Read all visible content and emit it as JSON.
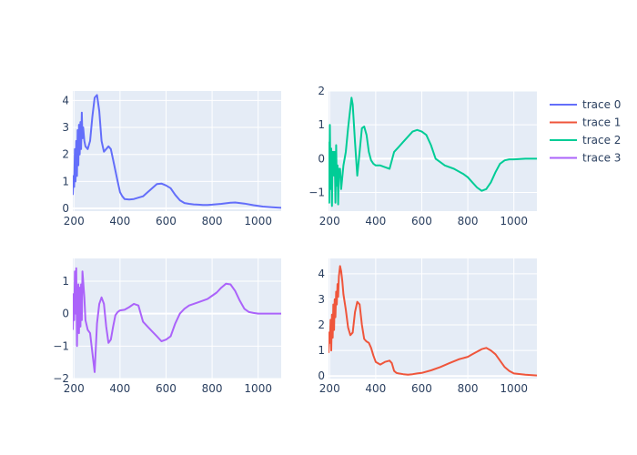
{
  "chart_data": [
    {
      "type": "line",
      "title": "",
      "xlabel": "",
      "ylabel": "",
      "xlim": [
        195,
        1100
      ],
      "ylim": [
        -0.1,
        4.35
      ],
      "x_ticks": [
        200,
        400,
        600,
        800,
        1000
      ],
      "y_ticks": [
        0,
        1,
        2,
        3,
        4
      ],
      "grid": true,
      "series": [
        {
          "name": "trace 0",
          "color": "#636efa",
          "x": [
            195,
            198,
            201,
            204,
            207,
            210,
            213,
            216,
            219,
            222,
            225,
            228,
            231,
            234,
            237,
            240,
            245,
            250,
            260,
            270,
            280,
            290,
            300,
            310,
            320,
            330,
            340,
            350,
            360,
            370,
            380,
            390,
            400,
            410,
            420,
            440,
            460,
            480,
            500,
            520,
            540,
            560,
            580,
            600,
            620,
            640,
            660,
            680,
            700,
            720,
            740,
            760,
            780,
            800,
            840,
            880,
            900,
            940,
            980,
            1020,
            1060,
            1100
          ],
          "y": [
            0.5,
            1.2,
            0.8,
            2.2,
            1.0,
            2.5,
            1.2,
            2.9,
            1.6,
            3.1,
            2.0,
            3.2,
            2.2,
            3.55,
            2.6,
            3.0,
            2.5,
            2.3,
            2.2,
            2.5,
            3.4,
            4.1,
            4.2,
            3.6,
            2.5,
            2.1,
            2.2,
            2.3,
            2.2,
            1.8,
            1.4,
            1.0,
            0.6,
            0.45,
            0.35,
            0.33,
            0.35,
            0.4,
            0.45,
            0.6,
            0.75,
            0.9,
            0.92,
            0.85,
            0.75,
            0.5,
            0.3,
            0.2,
            0.17,
            0.15,
            0.14,
            0.13,
            0.13,
            0.14,
            0.17,
            0.21,
            0.22,
            0.18,
            0.12,
            0.07,
            0.04,
            0.02
          ]
        }
      ]
    },
    {
      "type": "line",
      "title": "",
      "xlabel": "",
      "ylabel": "",
      "xlim": [
        195,
        1100
      ],
      "ylim": [
        -1.55,
        2.0
      ],
      "x_ticks": [
        200,
        400,
        600,
        800,
        1000
      ],
      "y_ticks": [
        -1,
        0,
        1,
        2
      ],
      "grid": true,
      "series": [
        {
          "name": "trace 2",
          "color": "#00cc96",
          "x": [
            195,
            198,
            201,
            204,
            207,
            210,
            213,
            216,
            219,
            222,
            225,
            228,
            231,
            234,
            237,
            240,
            245,
            250,
            260,
            270,
            280,
            290,
            295,
            300,
            310,
            320,
            330,
            340,
            350,
            360,
            370,
            380,
            390,
            400,
            420,
            440,
            460,
            480,
            500,
            520,
            540,
            560,
            580,
            600,
            620,
            640,
            660,
            680,
            700,
            740,
            780,
            800,
            820,
            840,
            860,
            880,
            900,
            920,
            940,
            960,
            980,
            1000,
            1050,
            1100
          ],
          "y": [
            0.5,
            -1.3,
            1.0,
            -0.9,
            0.3,
            -1.4,
            0.2,
            0.2,
            -0.5,
            0.2,
            -1.3,
            0.4,
            -0.8,
            -0.2,
            -1.35,
            -0.3,
            -0.3,
            -0.9,
            -0.2,
            0.2,
            0.9,
            1.5,
            1.8,
            1.6,
            0.5,
            -0.5,
            0.2,
            0.9,
            0.95,
            0.7,
            0.2,
            -0.05,
            -0.15,
            -0.2,
            -0.2,
            -0.25,
            -0.3,
            0.2,
            0.35,
            0.5,
            0.65,
            0.8,
            0.85,
            0.8,
            0.7,
            0.4,
            0.0,
            -0.1,
            -0.2,
            -0.3,
            -0.45,
            -0.55,
            -0.7,
            -0.85,
            -0.95,
            -0.9,
            -0.7,
            -0.4,
            -0.15,
            -0.05,
            -0.02,
            -0.02,
            0.0,
            0.0
          ]
        }
      ]
    },
    {
      "type": "line",
      "title": "",
      "xlabel": "",
      "ylabel": "",
      "xlim": [
        195,
        1100
      ],
      "ylim": [
        -2.0,
        1.7
      ],
      "x_ticks": [
        200,
        400,
        600,
        800,
        1000
      ],
      "y_ticks": [
        -2,
        -1,
        0,
        1
      ],
      "grid": true,
      "series": [
        {
          "name": "trace 3",
          "color": "#ab63fa",
          "x": [
            195,
            198,
            201,
            204,
            207,
            210,
            213,
            216,
            219,
            222,
            225,
            228,
            231,
            234,
            237,
            240,
            245,
            250,
            260,
            270,
            280,
            290,
            300,
            310,
            320,
            330,
            340,
            350,
            360,
            370,
            380,
            390,
            400,
            420,
            440,
            460,
            480,
            500,
            520,
            540,
            560,
            580,
            600,
            620,
            640,
            660,
            680,
            700,
            740,
            780,
            800,
            820,
            840,
            860,
            880,
            900,
            920,
            940,
            960,
            980,
            1000,
            1050,
            1100
          ],
          "y": [
            -0.5,
            0.6,
            -0.2,
            1.3,
            0.0,
            1.4,
            -1.0,
            0.3,
            0.9,
            -0.6,
            0.8,
            -0.4,
            0.9,
            -0.2,
            1.3,
            1.0,
            0.5,
            -0.2,
            -0.5,
            -0.6,
            -1.2,
            -1.8,
            -0.3,
            0.3,
            0.5,
            0.3,
            -0.4,
            -0.9,
            -0.8,
            -0.4,
            -0.05,
            0.05,
            0.1,
            0.12,
            0.2,
            0.3,
            0.25,
            -0.25,
            -0.4,
            -0.55,
            -0.7,
            -0.85,
            -0.8,
            -0.7,
            -0.3,
            0.0,
            0.15,
            0.25,
            0.35,
            0.45,
            0.55,
            0.65,
            0.8,
            0.92,
            0.9,
            0.7,
            0.4,
            0.15,
            0.05,
            0.02,
            0.0,
            0.0,
            0.0
          ]
        }
      ]
    },
    {
      "type": "line",
      "title": "",
      "xlabel": "",
      "ylabel": "",
      "xlim": [
        195,
        1100
      ],
      "ylim": [
        -0.1,
        4.6
      ],
      "x_ticks": [
        200,
        400,
        600,
        800,
        1000
      ],
      "y_ticks": [
        0,
        1,
        2,
        3,
        4
      ],
      "grid": true,
      "series": [
        {
          "name": "trace 1",
          "color": "#ef553b",
          "x": [
            195,
            198,
            201,
            204,
            207,
            210,
            213,
            216,
            219,
            222,
            225,
            228,
            231,
            234,
            237,
            240,
            245,
            250,
            255,
            260,
            270,
            280,
            290,
            300,
            310,
            320,
            330,
            340,
            350,
            360,
            370,
            380,
            390,
            400,
            420,
            440,
            460,
            470,
            480,
            490,
            500,
            520,
            540,
            560,
            580,
            600,
            640,
            680,
            720,
            760,
            800,
            820,
            840,
            860,
            880,
            900,
            920,
            940,
            960,
            980,
            1000,
            1050,
            1100
          ],
          "y": [
            0.9,
            1.7,
            1.3,
            2.2,
            1.0,
            2.4,
            1.5,
            2.8,
            1.8,
            3.0,
            2.3,
            3.3,
            2.8,
            3.6,
            3.1,
            3.9,
            4.3,
            4.1,
            3.7,
            3.2,
            2.6,
            1.9,
            1.6,
            1.7,
            2.5,
            2.9,
            2.8,
            2.0,
            1.45,
            1.35,
            1.3,
            1.1,
            0.8,
            0.55,
            0.45,
            0.55,
            0.6,
            0.5,
            0.2,
            0.12,
            0.1,
            0.07,
            0.05,
            0.07,
            0.1,
            0.12,
            0.22,
            0.35,
            0.5,
            0.65,
            0.75,
            0.85,
            0.95,
            1.05,
            1.1,
            1.0,
            0.85,
            0.6,
            0.35,
            0.2,
            0.1,
            0.05,
            0.02
          ]
        }
      ]
    }
  ],
  "legend": {
    "position": "top-right",
    "items": [
      {
        "label": "trace 0",
        "color": "#636efa"
      },
      {
        "label": "trace 1",
        "color": "#ef553b"
      },
      {
        "label": "trace 2",
        "color": "#00cc96"
      },
      {
        "label": "trace 3",
        "color": "#ab63fa"
      }
    ]
  },
  "style": {
    "plot_bg": "#e5ecf6",
    "grid_color": "#ffffff",
    "text_color": "#2a3f5f"
  }
}
